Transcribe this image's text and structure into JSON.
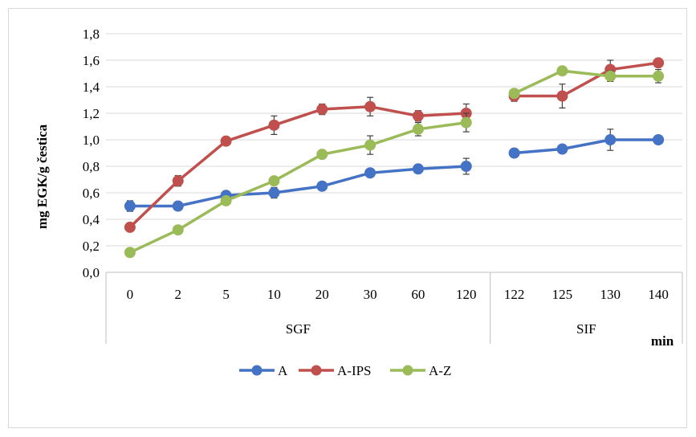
{
  "chart_data": {
    "type": "line",
    "ylabel": "mg EGK/g čestica",
    "x_unit_label": "min",
    "ylim": [
      0,
      1.8
    ],
    "yticks": [
      "0,0",
      "0,2",
      "0,4",
      "0,6",
      "0,8",
      "1,0",
      "1,2",
      "1,4",
      "1,6",
      "1,8"
    ],
    "categories": [
      "0",
      "2",
      "5",
      "10",
      "20",
      "30",
      "60",
      "120",
      "122",
      "125",
      "130",
      "140"
    ],
    "groups": [
      {
        "label": "SGF",
        "start": 0,
        "end": 7
      },
      {
        "label": "SIF",
        "start": 8,
        "end": 11
      }
    ],
    "grid": true,
    "legend": "bottom",
    "series": [
      {
        "name": "A",
        "color": "#4472C4",
        "values": [
          0.5,
          0.5,
          0.58,
          0.6,
          0.65,
          0.75,
          0.78,
          0.8,
          0.9,
          0.93,
          1.0,
          1.0
        ],
        "errors": [
          0.04,
          0.02,
          0.02,
          0.04,
          0.02,
          0.02,
          0.02,
          0.06,
          0.02,
          0.02,
          0.08,
          0.02
        ]
      },
      {
        "name": "A-IPS",
        "color": "#C0504D",
        "values": [
          0.34,
          0.69,
          0.99,
          1.11,
          1.23,
          1.25,
          1.18,
          1.2,
          1.33,
          1.33,
          1.53,
          1.58
        ],
        "errors": [
          0.02,
          0.04,
          0.02,
          0.07,
          0.04,
          0.07,
          0.04,
          0.07,
          0.04,
          0.09,
          0.07,
          0.02
        ]
      },
      {
        "name": "A-Z",
        "color": "#9BBB59",
        "values": [
          0.15,
          0.32,
          0.54,
          0.69,
          0.89,
          0.96,
          1.08,
          1.13,
          1.35,
          1.52,
          1.48,
          1.48
        ],
        "errors": [
          0.02,
          0.02,
          0.02,
          0.02,
          0.02,
          0.07,
          0.05,
          0.07,
          0.02,
          0.02,
          0.04,
          0.05
        ]
      }
    ]
  }
}
